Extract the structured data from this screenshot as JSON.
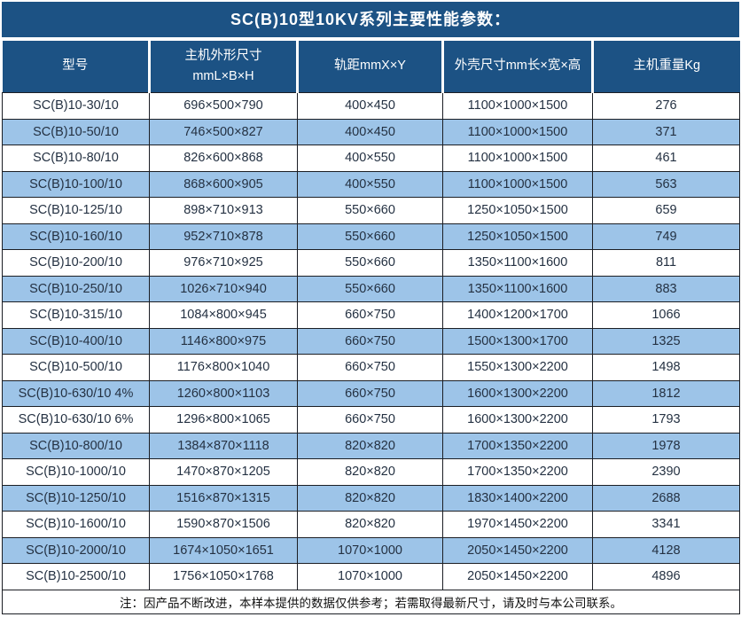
{
  "title": "SC(B)10型10KV系列主要性能参数：",
  "table": {
    "columns": [
      {
        "label": "型号"
      },
      {
        "label_line1": "主机外形尺寸",
        "label_line2": "mmL×B×H"
      },
      {
        "label": "轨距mmX×Y"
      },
      {
        "label": "外壳尺寸mm长×宽×高"
      },
      {
        "label": "主机重量Kg"
      }
    ],
    "column_keys": [
      "model",
      "unit-dimensions",
      "rail-gauge",
      "shell-dimensions",
      "weight"
    ],
    "rows": [
      [
        "SC(B)10-30/10",
        "696×500×790",
        "400×450",
        "1100×1000×1500",
        "276"
      ],
      [
        "SC(B)10-50/10",
        "746×500×827",
        "400×450",
        "1100×1000×1500",
        "371"
      ],
      [
        "SC(B)10-80/10",
        "826×600×868",
        "400×550",
        "1100×1000×1500",
        "461"
      ],
      [
        "SC(B)10-100/10",
        "868×600×905",
        "400×550",
        "1100×1000×1500",
        "563"
      ],
      [
        "SC(B)10-125/10",
        "898×710×913",
        "550×660",
        "1250×1050×1500",
        "659"
      ],
      [
        "SC(B)10-160/10",
        "952×710×878",
        "550×660",
        "1250×1050×1500",
        "749"
      ],
      [
        "SC(B)10-200/10",
        "976×710×925",
        "550×660",
        "1350×1100×1600",
        "811"
      ],
      [
        "SC(B)10-250/10",
        "1026×710×940",
        "550×660",
        "1350×1100×1600",
        "883"
      ],
      [
        "SC(B)10-315/10",
        "1084×800×945",
        "660×750",
        "1400×1200×1700",
        "1066"
      ],
      [
        "SC(B)10-400/10",
        "1146×800×975",
        "660×750",
        "1500×1300×1700",
        "1325"
      ],
      [
        "SC(B)10-500/10",
        "1176×800×1040",
        "660×750",
        "1550×1300×2200",
        "1498"
      ],
      [
        "SC(B)10-630/10 4%",
        "1260×800×1103",
        "660×750",
        "1600×1300×2200",
        "1812"
      ],
      [
        "SC(B)10-630/10 6%",
        "1296×800×1065",
        "660×750",
        "1600×1300×2200",
        "1793"
      ],
      [
        "SC(B)10-800/10",
        "1384×870×1118",
        "820×820",
        "1700×1350×2200",
        "1978"
      ],
      [
        "SC(B)10-1000/10",
        "1470×870×1205",
        "820×820",
        "1700×1350×2200",
        "2390"
      ],
      [
        "SC(B)10-1250/10",
        "1516×870×1315",
        "820×820",
        "1830×1400×2200",
        "2688"
      ],
      [
        "SC(B)10-1600/10",
        "1590×870×1506",
        "820×820",
        "1970×1450×2200",
        "3341"
      ],
      [
        "SC(B)10-2000/10",
        "1674×1050×1651",
        "1070×1000",
        "2050×1450×2200",
        "4128"
      ],
      [
        "SC(B)10-2500/10",
        "1756×1050×1768",
        "1070×1000",
        "2050×1450×2200",
        "4896"
      ]
    ],
    "note": "注：因产品不断改进，本样本提供的数据仅供参考；若需取得最新尺寸，请及时与本公司联系。"
  },
  "colors": {
    "header_bg": "#1c5284",
    "row_alt_bg": "#9dc4e8",
    "border": "#1b1e24",
    "text": "#243142",
    "header_text": "#ffffff"
  }
}
